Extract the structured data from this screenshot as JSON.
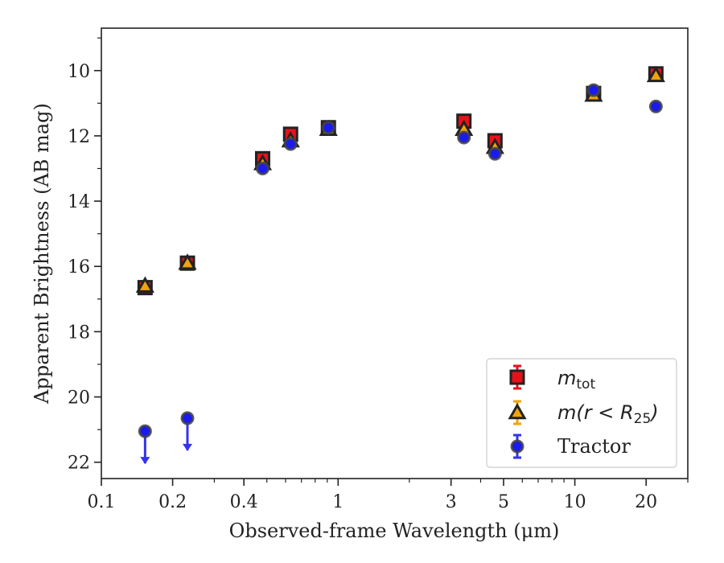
{
  "chart_data": {
    "type": "scatter",
    "xlabel": "Observed-frame Wavelength (μm)",
    "ylabel": "Apparent Brightness (AB mag)",
    "x_scale": "log",
    "y_inverted": true,
    "xlim": [
      0.1,
      30
    ],
    "ylim": [
      22.5,
      8.7
    ],
    "x_ticks": [
      {
        "value": 0.1,
        "label": "0.1"
      },
      {
        "value": 0.2,
        "label": "0.2"
      },
      {
        "value": 0.4,
        "label": "0.4"
      },
      {
        "value": 1,
        "label": "1"
      },
      {
        "value": 3,
        "label": "3"
      },
      {
        "value": 5,
        "label": "5"
      },
      {
        "value": 10,
        "label": "10"
      },
      {
        "value": 20,
        "label": "20"
      }
    ],
    "y_ticks": [
      {
        "value": 10,
        "label": "10"
      },
      {
        "value": 12,
        "label": "12"
      },
      {
        "value": 14,
        "label": "14"
      },
      {
        "value": 16,
        "label": "16"
      },
      {
        "value": 18,
        "label": "18"
      },
      {
        "value": 20,
        "label": "20"
      },
      {
        "value": 22,
        "label": "22"
      }
    ],
    "grid": false,
    "legend_position": "bottom-right",
    "series": [
      {
        "name": "m_tot",
        "marker": "square",
        "color": "#e8111a",
        "edge_color": "#222222",
        "points": [
          {
            "x": 0.153,
            "y": 16.65
          },
          {
            "x": 0.231,
            "y": 15.9
          },
          {
            "x": 0.48,
            "y": 12.7
          },
          {
            "x": 0.63,
            "y": 11.95
          },
          {
            "x": 0.91,
            "y": 11.75
          },
          {
            "x": 3.4,
            "y": 11.55
          },
          {
            "x": 4.6,
            "y": 12.15
          },
          {
            "x": 12.0,
            "y": 10.7
          },
          {
            "x": 22.0,
            "y": 10.1
          }
        ]
      },
      {
        "name": "m(r < R25)",
        "marker": "triangle",
        "color": "#f0a30a",
        "edge_color": "#222222",
        "points": [
          {
            "x": 0.153,
            "y": 16.6
          },
          {
            "x": 0.231,
            "y": 15.9
          },
          {
            "x": 0.48,
            "y": 12.85
          },
          {
            "x": 0.63,
            "y": 12.15
          },
          {
            "x": 0.91,
            "y": 11.8
          },
          {
            "x": 3.4,
            "y": 11.8
          },
          {
            "x": 4.6,
            "y": 12.35
          },
          {
            "x": 12.0,
            "y": 10.75
          },
          {
            "x": 22.0,
            "y": 10.15
          }
        ]
      },
      {
        "name": "Tractor",
        "marker": "circle",
        "color": "#1a1aee",
        "edge_color": "#444444",
        "points": [
          {
            "x": 0.153,
            "y": 21.05,
            "upper_limit": true
          },
          {
            "x": 0.231,
            "y": 20.65,
            "upper_limit": true
          },
          {
            "x": 0.48,
            "y": 13.0
          },
          {
            "x": 0.63,
            "y": 12.25
          },
          {
            "x": 0.91,
            "y": 11.75
          },
          {
            "x": 3.4,
            "y": 12.05
          },
          {
            "x": 4.6,
            "y": 12.55
          },
          {
            "x": 12.0,
            "y": 10.6
          },
          {
            "x": 22.0,
            "y": 11.1
          }
        ]
      }
    ]
  }
}
